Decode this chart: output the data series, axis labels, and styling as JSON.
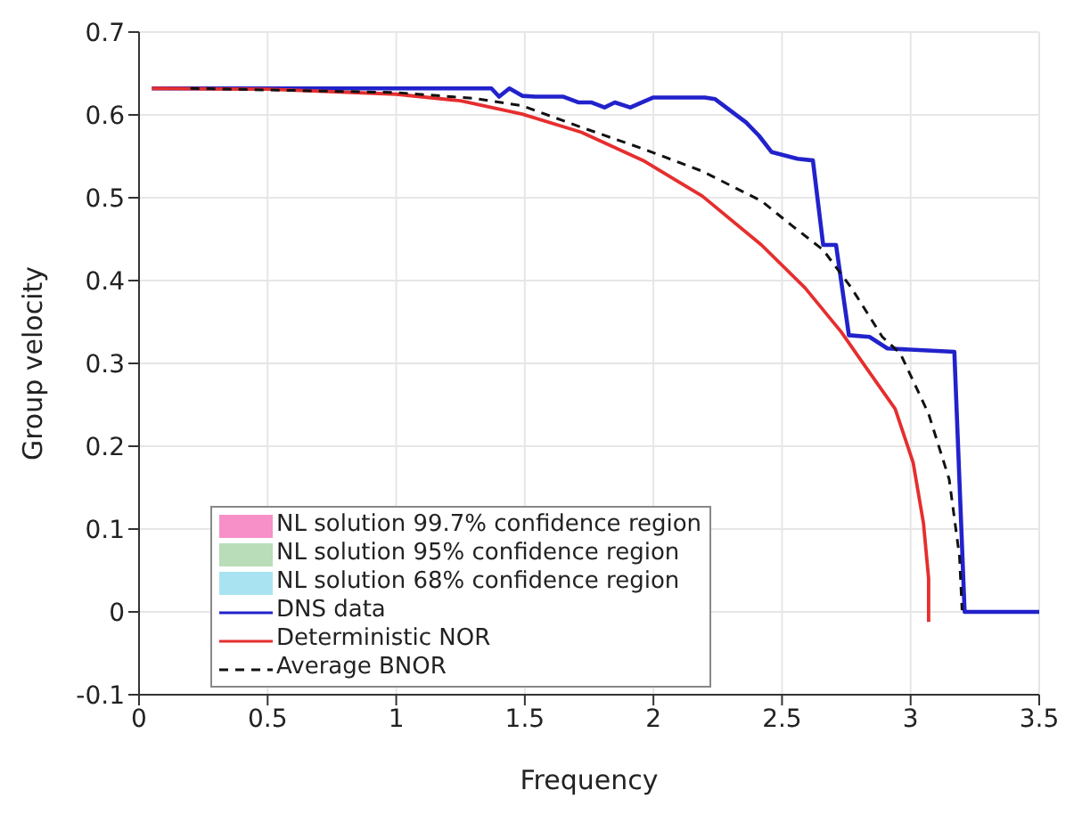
{
  "chart_data": {
    "type": "line",
    "xlabel": "Frequency",
    "ylabel": "Group velocity",
    "xlim": [
      0,
      3.5
    ],
    "ylim": [
      -0.1,
      0.7
    ],
    "xticks": [
      0,
      0.5,
      1,
      1.5,
      2,
      2.5,
      3,
      3.5
    ],
    "yticks": [
      -0.1,
      0,
      0.1,
      0.2,
      0.3,
      0.4,
      0.5,
      0.6,
      0.7
    ],
    "grid": true,
    "legend": "bottom left",
    "marker": "none",
    "series": [
      {
        "name": "NL solution 99.7% confidence region",
        "type": "area",
        "color": "#f78fc8"
      },
      {
        "name": "NL solution 95% confidence region",
        "type": "area",
        "color": "#b9dcb9"
      },
      {
        "name": "NL solution 68% confidence region",
        "type": "area",
        "color": "#a9e3f2"
      },
      {
        "name": "DNS data",
        "color": "#2222cc",
        "line_style": "solid",
        "x": [
          0.05,
          1.37,
          1.4,
          1.44,
          1.49,
          1.54,
          1.65,
          1.71,
          1.76,
          1.81,
          1.85,
          1.91,
          2.0,
          2.2,
          2.24,
          2.36,
          2.41,
          2.46,
          2.56,
          2.62,
          2.66,
          2.71,
          2.76,
          2.84,
          2.91,
          3.17,
          3.21,
          3.5
        ],
        "values": [
          0.632,
          0.632,
          0.622,
          0.632,
          0.623,
          0.622,
          0.622,
          0.615,
          0.615,
          0.609,
          0.615,
          0.609,
          0.621,
          0.621,
          0.619,
          0.591,
          0.575,
          0.555,
          0.547,
          0.545,
          0.443,
          0.443,
          0.334,
          0.332,
          0.318,
          0.314,
          0,
          0
        ]
      },
      {
        "name": "Deterministic NOR",
        "color": "#e62e2e",
        "line_style": "solid",
        "x": [
          0.05,
          0.5,
          1.0,
          1.25,
          1.49,
          1.72,
          1.96,
          2.19,
          2.42,
          2.59,
          2.73,
          2.82,
          2.94,
          3.01,
          3.05,
          3.07,
          3.07
        ],
        "values": [
          0.632,
          0.631,
          0.625,
          0.617,
          0.601,
          0.579,
          0.545,
          0.502,
          0.443,
          0.391,
          0.338,
          0.298,
          0.245,
          0.18,
          0.107,
          0.04,
          -0.012
        ]
      },
      {
        "name": "Average BNOR",
        "color": "#111111",
        "line_style": "dashed",
        "x": [
          0.2,
          1.0,
          1.3,
          1.49,
          1.72,
          1.96,
          2.19,
          2.42,
          2.54,
          2.66,
          2.77,
          2.89,
          2.96,
          3.07,
          3.15,
          3.19,
          3.2
        ],
        "values": [
          0.632,
          0.627,
          0.62,
          0.611,
          0.585,
          0.559,
          0.532,
          0.496,
          0.466,
          0.437,
          0.391,
          0.332,
          0.312,
          0.239,
          0.16,
          0.067,
          0.002
        ]
      }
    ]
  }
}
